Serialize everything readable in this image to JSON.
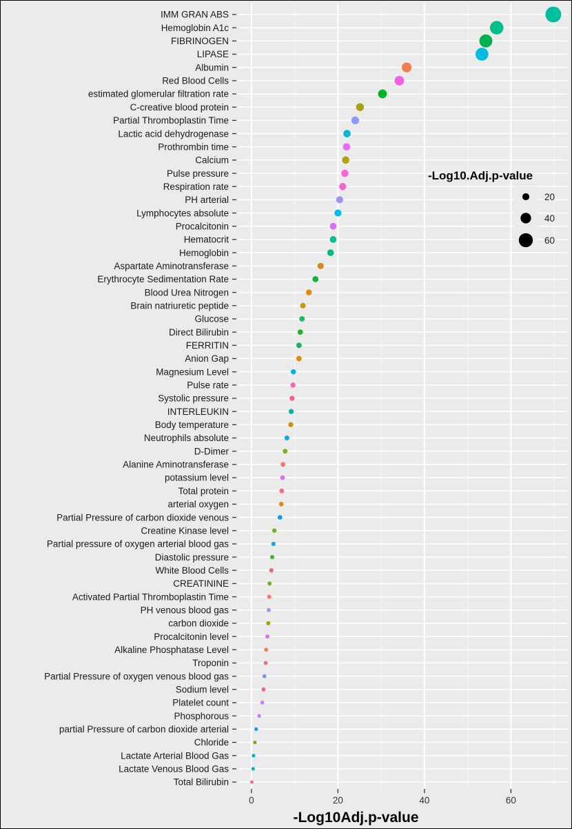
{
  "chart_data": {
    "type": "scatter",
    "xlabel": "-Log10Adj.p-value",
    "ylabel": "",
    "xlim": [
      -3,
      73
    ],
    "xticks": [
      0,
      20,
      40,
      60
    ],
    "grid": true,
    "legend": {
      "title": "-Log10.Adj.p-value",
      "placement": "right",
      "entries": [
        {
          "label": "20",
          "value": 20
        },
        {
          "label": "40",
          "value": 40
        },
        {
          "label": "60",
          "value": 60
        }
      ]
    },
    "points": [
      {
        "label": "IMM GRAN ABS",
        "value": 69.8,
        "color": "#00bfa0"
      },
      {
        "label": "Hemoglobin A1c",
        "value": 56.7,
        "color": "#00bf8a"
      },
      {
        "label": "FIBRINOGEN",
        "value": 54.2,
        "color": "#00b050"
      },
      {
        "label": "LIPASE",
        "value": 53.3,
        "color": "#00bbe0"
      },
      {
        "label": "Albumin",
        "value": 35.9,
        "color": "#ef7f50"
      },
      {
        "label": "Red Blood Cells",
        "value": 34.2,
        "color": "#f45ee3"
      },
      {
        "label": "estimated glomerular filtration rate",
        "value": 30.3,
        "color": "#00b51f"
      },
      {
        "label": "C-creative blood protein",
        "value": 25.1,
        "color": "#a9a20b"
      },
      {
        "label": "Partial Thromboplastin Time",
        "value": 24.0,
        "color": "#8a9af7"
      },
      {
        "label": "Lactic acid dehydrogenase",
        "value": 22.1,
        "color": "#00b8d8"
      },
      {
        "label": "Prothrombin time",
        "value": 22.0,
        "color": "#e56cf4"
      },
      {
        "label": "Calcium",
        "value": 21.8,
        "color": "#b6a20b"
      },
      {
        "label": "Pulse pressure",
        "value": 21.6,
        "color": "#f565d8"
      },
      {
        "label": "Respiration rate",
        "value": 21.1,
        "color": "#f465c8"
      },
      {
        "label": "PH arterial",
        "value": 20.4,
        "color": "#9a95f5"
      },
      {
        "label": "Lymphocytes absolute",
        "value": 20.0,
        "color": "#00bce6"
      },
      {
        "label": "Procalcitonin",
        "value": 18.9,
        "color": "#dc6ff2"
      },
      {
        "label": "Hematocrit",
        "value": 18.9,
        "color": "#00be8e"
      },
      {
        "label": "Hemoglobin",
        "value": 18.3,
        "color": "#00bf7a"
      },
      {
        "label": "Aspartate Aminotransferase",
        "value": 16.0,
        "color": "#d68a12"
      },
      {
        "label": "Erythrocyte Sedimentation Rate",
        "value": 14.8,
        "color": "#15b53a"
      },
      {
        "label": "Blood Urea Nitrogen",
        "value": 13.3,
        "color": "#d98d0b"
      },
      {
        "label": "Brain natriuretic peptide",
        "value": 11.9,
        "color": "#c69a0f"
      },
      {
        "label": "Glucose",
        "value": 11.7,
        "color": "#1ebb66"
      },
      {
        "label": "Direct Bilirubin",
        "value": 11.3,
        "color": "#27b42a"
      },
      {
        "label": "FERRITIN",
        "value": 11.0,
        "color": "#17b75b"
      },
      {
        "label": "Anion Gap",
        "value": 11.0,
        "color": "#d98b0f"
      },
      {
        "label": "Magnesium Level",
        "value": 9.7,
        "color": "#00b0ee"
      },
      {
        "label": "Pulse rate",
        "value": 9.6,
        "color": "#f265c0"
      },
      {
        "label": "Systolic pressure",
        "value": 9.4,
        "color": "#f2629f"
      },
      {
        "label": "INTERLEUKIN",
        "value": 9.2,
        "color": "#00b6a8"
      },
      {
        "label": "Body temperature",
        "value": 9.1,
        "color": "#c3950e"
      },
      {
        "label": "Neutrophils absolute",
        "value": 8.2,
        "color": "#0aa9ec"
      },
      {
        "label": "D-Dimer",
        "value": 7.8,
        "color": "#7db01d"
      },
      {
        "label": "Alanine Aminotransferase",
        "value": 7.3,
        "color": "#ef7c60"
      },
      {
        "label": "potassium level",
        "value": 7.2,
        "color": "#cf74f2"
      },
      {
        "label": "Total protein",
        "value": 7.0,
        "color": "#f66c88"
      },
      {
        "label": "arterial oxygen",
        "value": 6.9,
        "color": "#dd8a0e"
      },
      {
        "label": "Partial Pressure of carbon dioxide venous",
        "value": 6.6,
        "color": "#0f98f0"
      },
      {
        "label": "Creatine Kinase level",
        "value": 5.3,
        "color": "#6cb42a"
      },
      {
        "label": "Partial pressure of oxygen arterial blood gas",
        "value": 5.1,
        "color": "#15a5ee"
      },
      {
        "label": "Diastolic pressure",
        "value": 4.8,
        "color": "#48b332"
      },
      {
        "label": "White Blood Cells",
        "value": 4.6,
        "color": "#f2647a"
      },
      {
        "label": "CREATININE",
        "value": 4.2,
        "color": "#77b01a"
      },
      {
        "label": "Activated Partial Thromboplastin Time",
        "value": 4.1,
        "color": "#f27a6a"
      },
      {
        "label": "PH venous blood gas",
        "value": 4.0,
        "color": "#ad8df5"
      },
      {
        "label": "carbon dioxide",
        "value": 3.9,
        "color": "#a3a30f"
      },
      {
        "label": "Procalcitonin level",
        "value": 3.7,
        "color": "#e06ef0"
      },
      {
        "label": "Alkaline Phosphatase Level",
        "value": 3.4,
        "color": "#ef7f45"
      },
      {
        "label": "Troponin",
        "value": 3.3,
        "color": "#f66b78"
      },
      {
        "label": "Partial Pressure of oxygen venous blood gas",
        "value": 3.0,
        "color": "#6a9bf2"
      },
      {
        "label": "Sodium level",
        "value": 2.8,
        "color": "#f16090"
      },
      {
        "label": "Platelet count",
        "value": 2.5,
        "color": "#c87ef2"
      },
      {
        "label": "Phosphorous",
        "value": 1.8,
        "color": "#c47ff0"
      },
      {
        "label": "partial Pressure of carbon dioxide arterial",
        "value": 1.1,
        "color": "#129cf0"
      },
      {
        "label": "Chloride",
        "value": 0.8,
        "color": "#92a812"
      },
      {
        "label": "Lactate Arterial Blood Gas",
        "value": 0.5,
        "color": "#00b8c4"
      },
      {
        "label": "Lactate Venous Blood Gas",
        "value": 0.4,
        "color": "#00b4cf"
      },
      {
        "label": "Total Bilirubin",
        "value": 0.1,
        "color": "#f7639a"
      }
    ]
  }
}
